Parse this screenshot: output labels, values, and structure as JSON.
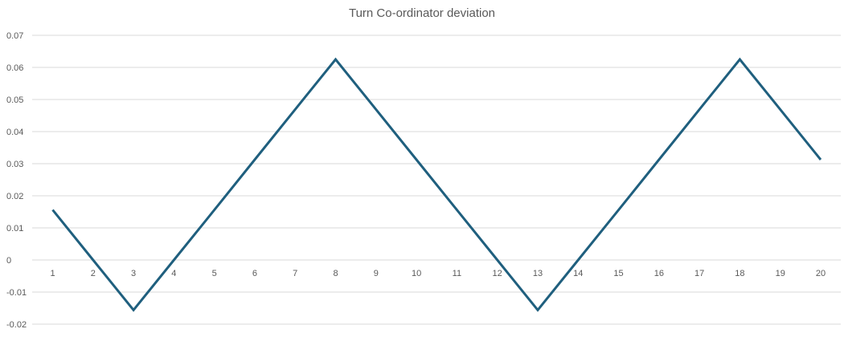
{
  "chart_data": {
    "type": "line",
    "title": "Turn Co-ordinator deviation",
    "xlabel": "",
    "ylabel": "",
    "categories": [
      "1",
      "2",
      "3",
      "4",
      "5",
      "6",
      "7",
      "8",
      "9",
      "10",
      "11",
      "12",
      "13",
      "14",
      "15",
      "16",
      "17",
      "18",
      "19",
      "20"
    ],
    "series": [
      {
        "values": [
          0.0156,
          0.0,
          -0.0156,
          0.0,
          0.0156,
          0.03125,
          0.0469,
          0.0625,
          0.0469,
          0.03125,
          0.0156,
          0.0,
          -0.0156,
          0.0,
          0.0156,
          0.03125,
          0.0469,
          0.0625,
          0.0469,
          0.03125
        ],
        "color": "#1f5f7e"
      }
    ],
    "ylim": [
      -0.02,
      0.07
    ],
    "yticks": [
      "-0.02",
      "-0.01",
      "0",
      "0.01",
      "0.02",
      "0.03",
      "0.04",
      "0.05",
      "0.06",
      "0.07"
    ],
    "grid": true,
    "gridline_color": "#d9d9d9",
    "tick_label_color": "#595959"
  }
}
